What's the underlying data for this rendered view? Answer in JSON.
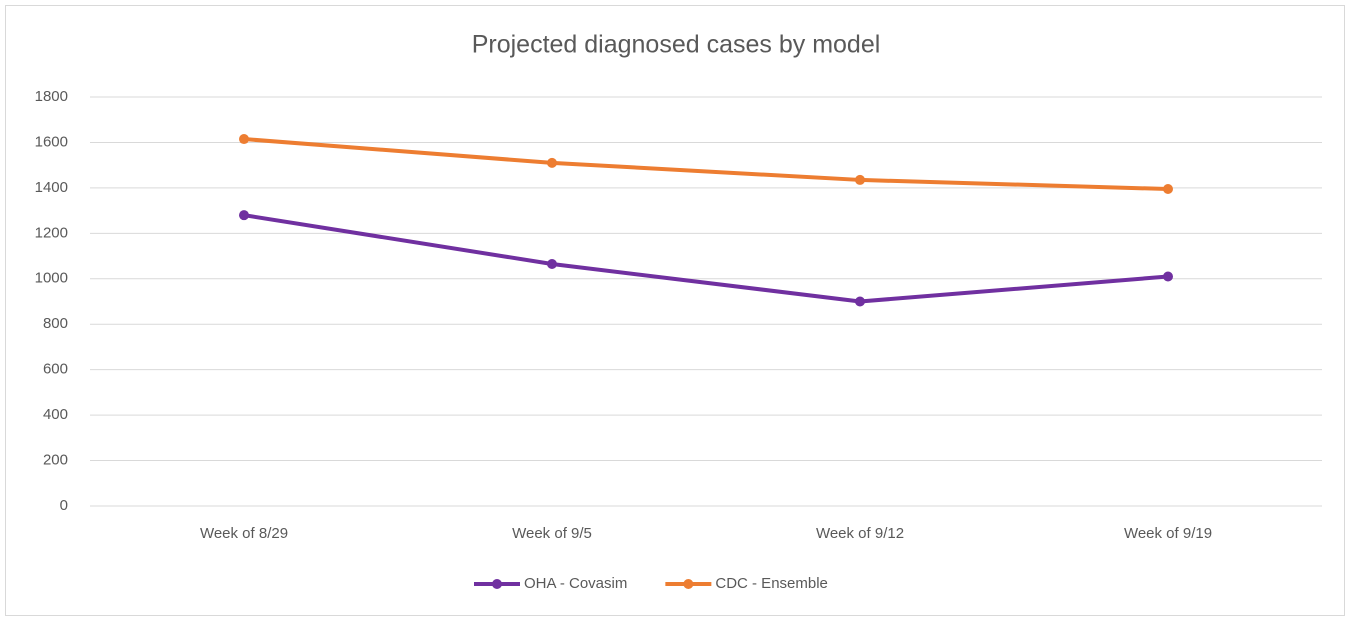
{
  "chart_data": {
    "type": "line",
    "title": "Projected diagnosed cases by model",
    "categories": [
      "Week of 8/29",
      "Week of 9/5",
      "Week of 9/12",
      "Week of 9/19"
    ],
    "series": [
      {
        "name": "OHA - Covasim",
        "color": "#7030a0",
        "values": [
          1280,
          1065,
          900,
          1010
        ]
      },
      {
        "name": "CDC - Ensemble",
        "color": "#ed7d31",
        "values": [
          1615,
          1510,
          1435,
          1395
        ]
      }
    ],
    "ylim": [
      0,
      1800
    ],
    "yticks": [
      0,
      200,
      400,
      600,
      800,
      1000,
      1200,
      1400,
      1600,
      1800
    ],
    "grid": true,
    "legend": "bottom"
  }
}
